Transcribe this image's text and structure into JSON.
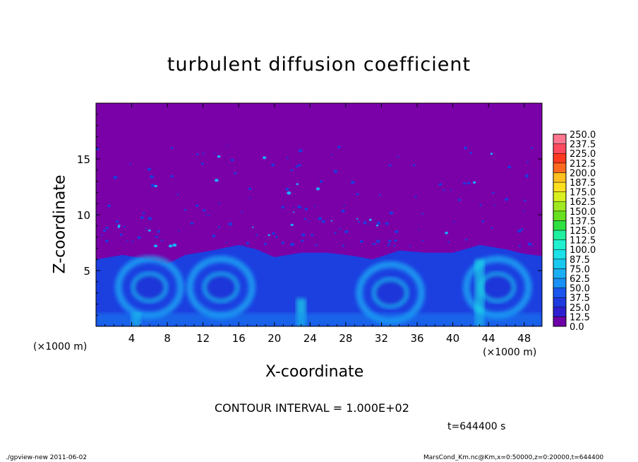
{
  "title": "turbulent diffusion coefficient",
  "x_unit_left": "(×1000 m)",
  "x_unit_right": "(×1000 m)",
  "contour_interval": "CONTOUR INTERVAL = 1.000E+02",
  "time_label": "t=644400 s",
  "footer_left": "./gpview-new   2011-06-02",
  "footer_right": "MarsCond_Km.nc@Km,x=0:50000,z=0:20000,t=644400",
  "colors": {
    "background": "#7a00a8",
    "levels": [
      "#6e00a8",
      "#2e1fd0",
      "#1f3ae0",
      "#1a55ee",
      "#1874f5",
      "#1890f5",
      "#1aaef5",
      "#19c8f0",
      "#1de0e8",
      "#20f0d0",
      "#1ef0a0",
      "#1ee870",
      "#2ee040",
      "#66e020",
      "#a0e820",
      "#d8f020",
      "#ffe020",
      "#ffc020",
      "#ff9a20",
      "#ff6a20",
      "#ff3a20",
      "#ff4a60",
      "#ff7890"
    ]
  },
  "chart_data": {
    "type": "heatmap",
    "title": "turbulent diffusion coefficient",
    "xlabel": "X-coordinate",
    "ylabel": "Z-coordinate",
    "xlim": [
      0,
      50
    ],
    "ylim": [
      0,
      20
    ],
    "xticks": [
      "4",
      "8",
      "12",
      "16",
      "20",
      "24",
      "28",
      "32",
      "36",
      "40",
      "44",
      "48"
    ],
    "yticks": [
      "5",
      "10",
      "15"
    ],
    "colorbar_levels": [
      "0.0",
      "12.5",
      "25.0",
      "37.5",
      "50.0",
      "62.5",
      "75.0",
      "87.5",
      "100.0",
      "112.5",
      "125.0",
      "137.5",
      "150.0",
      "162.5",
      "175.0",
      "187.5",
      "200.0",
      "212.5",
      "225.0",
      "237.5",
      "250.0"
    ],
    "boundary_layer_top": [
      {
        "x": 0,
        "z": 6.0
      },
      {
        "x": 3,
        "z": 6.4
      },
      {
        "x": 6,
        "z": 6.0
      },
      {
        "x": 8,
        "z": 5.6
      },
      {
        "x": 10,
        "z": 6.4
      },
      {
        "x": 13,
        "z": 6.8
      },
      {
        "x": 16,
        "z": 7.3
      },
      {
        "x": 18,
        "z": 6.9
      },
      {
        "x": 20,
        "z": 6.2
      },
      {
        "x": 23,
        "z": 6.6
      },
      {
        "x": 26,
        "z": 6.6
      },
      {
        "x": 29,
        "z": 6.3
      },
      {
        "x": 31,
        "z": 6.0
      },
      {
        "x": 34,
        "z": 6.8
      },
      {
        "x": 37,
        "z": 6.6
      },
      {
        "x": 40,
        "z": 6.6
      },
      {
        "x": 43,
        "z": 7.3
      },
      {
        "x": 46,
        "z": 6.9
      },
      {
        "x": 48,
        "z": 6.5
      },
      {
        "x": 50,
        "z": 6.3
      }
    ],
    "eddy_centers": [
      {
        "x": 6,
        "z": 3.5
      },
      {
        "x": 14,
        "z": 3.5
      },
      {
        "x": 33,
        "z": 3.0
      },
      {
        "x": 45,
        "z": 3.5
      }
    ],
    "plume_columns": [
      {
        "x": 4.5,
        "z_top": 1.2
      },
      {
        "x": 23,
        "z_top": 2.5
      },
      {
        "x": 43,
        "z_top": 6.0
      }
    ]
  }
}
